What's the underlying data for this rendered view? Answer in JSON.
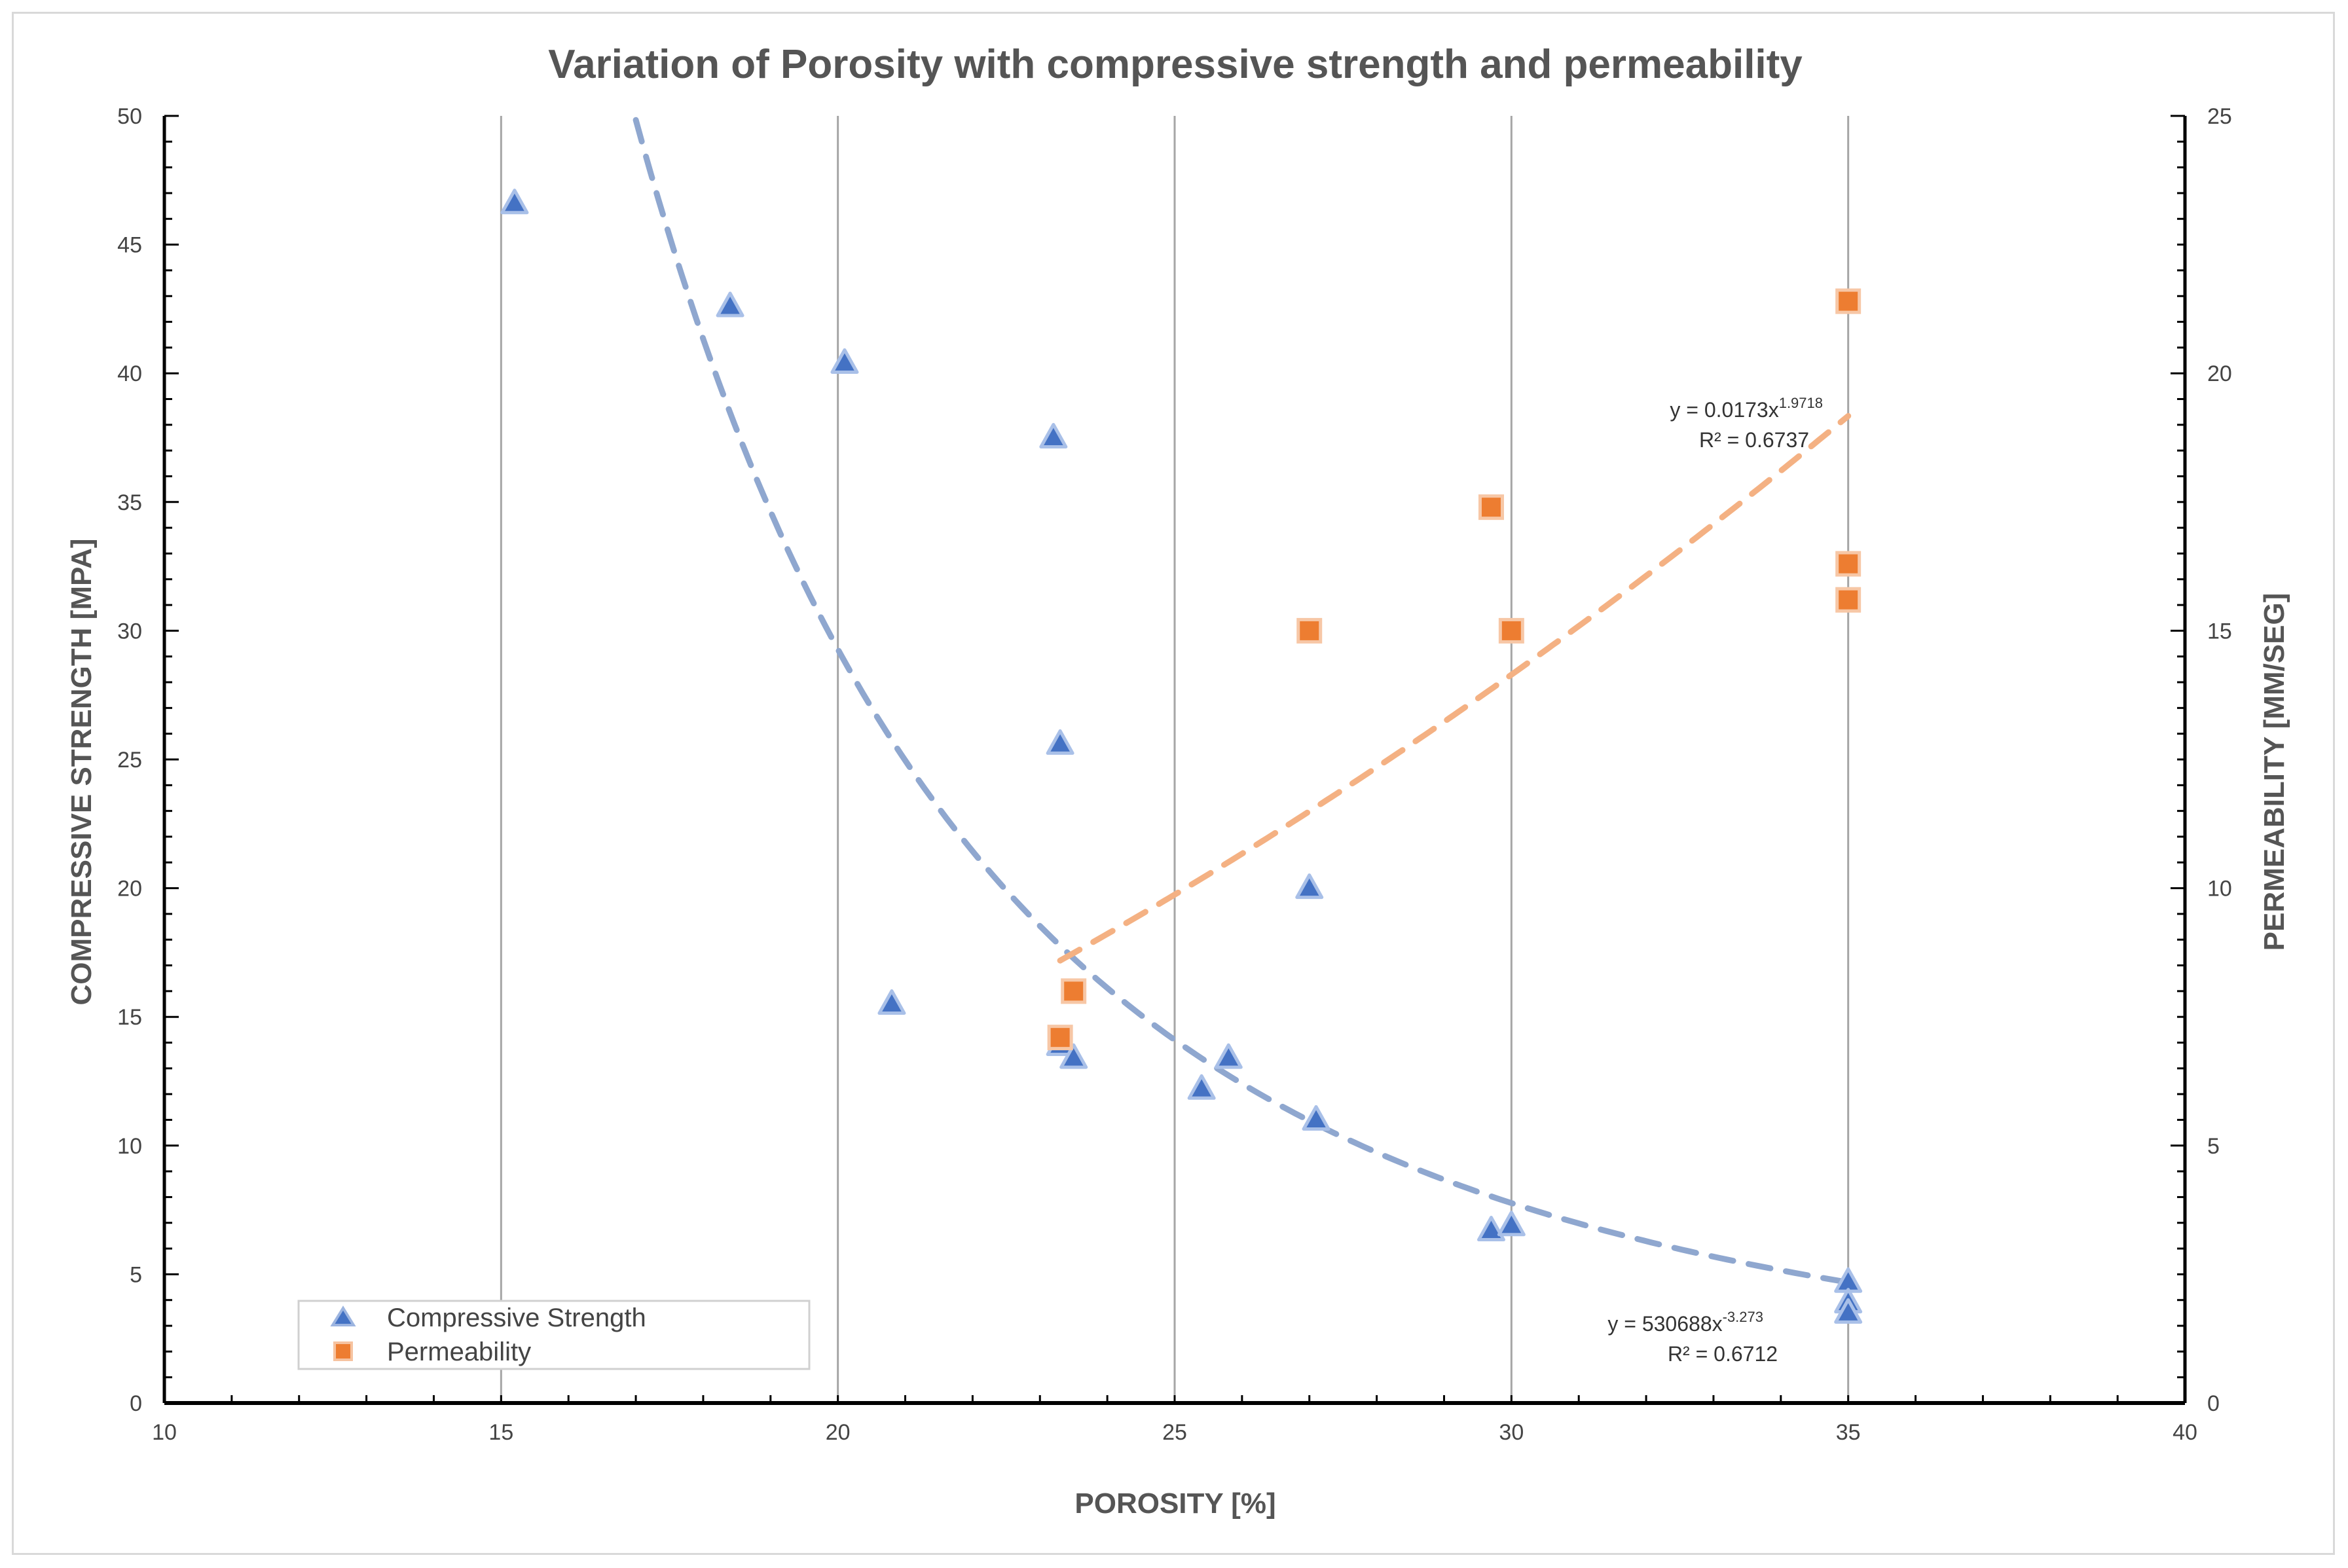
{
  "chart_data": {
    "type": "scatter",
    "title": "Variation of Porosity with compressive strength and permeability",
    "xlabel": "POROSITY [%]",
    "ylabel": "COMPRESSIVE STRENGTH [MPA]",
    "y2label": "PERMEABILITY [MM/SEG]",
    "xlim": [
      10,
      40
    ],
    "ylim": [
      0,
      50
    ],
    "y2lim": [
      0,
      25
    ],
    "x_ticks": [
      10,
      15,
      20,
      25,
      30,
      35,
      40
    ],
    "y_ticks": [
      0,
      5,
      10,
      15,
      20,
      25,
      30,
      35,
      40,
      45,
      50
    ],
    "y2_ticks": [
      0,
      5,
      10,
      15,
      20,
      25
    ],
    "grid": "vertical",
    "legend_position": "bottom-left",
    "series": [
      {
        "name": "Compressive Strength",
        "axis": "left",
        "marker": "triangle",
        "color": "#4472c4",
        "points": [
          [
            15.2,
            46.6
          ],
          [
            18.4,
            42.6
          ],
          [
            20.1,
            40.4
          ],
          [
            23.2,
            37.5
          ],
          [
            23.3,
            25.6
          ],
          [
            20.8,
            15.5
          ],
          [
            23.3,
            13.9
          ],
          [
            23.5,
            13.4
          ],
          [
            25.4,
            12.2
          ],
          [
            25.8,
            13.4
          ],
          [
            27.0,
            20.0
          ],
          [
            27.1,
            11.0
          ],
          [
            29.7,
            6.7
          ],
          [
            30.0,
            6.9
          ],
          [
            35.0,
            4.7
          ],
          [
            35.0,
            3.9
          ],
          [
            35.0,
            3.5
          ]
        ],
        "trendline": {
          "type": "power",
          "a": 530688,
          "b": -3.273,
          "x_range": [
            17.0,
            35.0
          ],
          "color": "#8fa7cf",
          "equation_base": "y = 530688x",
          "equation_exp": "-3.273",
          "r2": "R² = 0.6712"
        }
      },
      {
        "name": "Permeability",
        "axis": "right",
        "marker": "square",
        "color": "#ed7d31",
        "points": [
          [
            23.3,
            7.1
          ],
          [
            23.5,
            8.0
          ],
          [
            27.0,
            15.0
          ],
          [
            29.7,
            17.4
          ],
          [
            30.0,
            15.0
          ],
          [
            35.0,
            21.4
          ],
          [
            35.0,
            16.3
          ],
          [
            35.0,
            15.6
          ]
        ],
        "trendline": {
          "type": "power",
          "a": 0.0173,
          "b": 1.9718,
          "x_range": [
            23.3,
            35.0
          ],
          "color": "#f4b183",
          "equation_base": "y = 0.0173x",
          "equation_exp": "1.9718",
          "r2": "R² = 0.6737"
        }
      }
    ]
  }
}
